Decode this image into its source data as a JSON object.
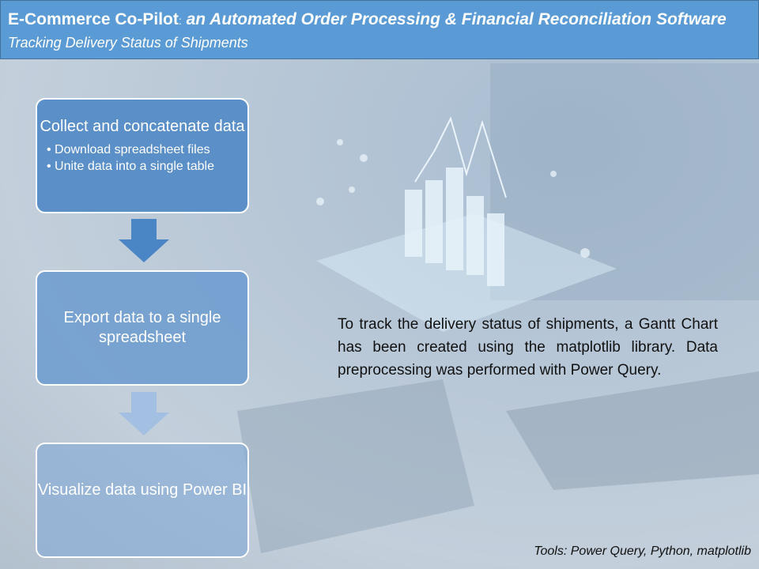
{
  "header": {
    "title_main": "E-Commerce Co-Pilot",
    "title_sep": ":",
    "title_rest": "an Automated Order Processing & Financial Reconciliation Software",
    "subtitle": "Tracking Delivery Status of Shipments"
  },
  "steps": [
    {
      "title": "Collect and concatenate data",
      "bullets": [
        "• Download spreadsheet files",
        "• Unite data into a single table"
      ]
    },
    {
      "title": "Export data to a single spreadsheet"
    },
    {
      "title": "Visualize data using Power BI"
    }
  ],
  "description": "To track the delivery status of shipments, a Gantt Chart has been created using the matplotlib library. Data preprocessing was performed with Power Query.",
  "footer": "Tools: Power Query, Python, matplotlib"
}
